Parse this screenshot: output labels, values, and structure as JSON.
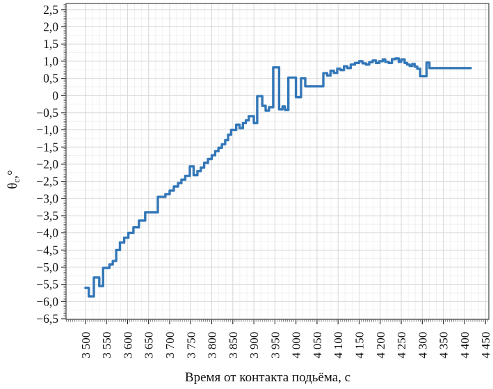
{
  "figure": {
    "xlabel": "Время от контакта подьёма, с",
    "ylabel_theta": "θ",
    "ylabel_sub": "с",
    "ylabel_rest": ",°"
  },
  "chart_data": {
    "type": "line",
    "line_style": "step",
    "title": "",
    "xlabel": "Время от контакта подьёма, с",
    "ylabel": "θс,°",
    "legend_position": "none",
    "grid": true,
    "xlim": [
      3454,
      4458
    ],
    "ylim": [
      -6.52,
      2.68
    ],
    "x_ticks": [
      3500,
      3550,
      3600,
      3650,
      3700,
      3750,
      3800,
      3850,
      3900,
      3950,
      4000,
      4050,
      4100,
      4150,
      4200,
      4250,
      4300,
      4350,
      4400,
      4450
    ],
    "x_tick_labels": [
      "3 500",
      "3 550",
      "3 600",
      "3 650",
      "3 700",
      "3 750",
      "3 800",
      "3 850",
      "3 900",
      "3 950",
      "4 000",
      "4 050",
      "4 100",
      "4 150",
      "4 200",
      "4 250",
      "4 300",
      "4 350",
      "4 400",
      "4 450"
    ],
    "y_ticks": [
      2.5,
      2.0,
      1.5,
      1.0,
      0.5,
      0,
      -0.5,
      -1.0,
      -1.5,
      -2.0,
      -2.5,
      -3.0,
      -3.5,
      -4.0,
      -4.5,
      -5.0,
      -5.5,
      -6.0,
      -6.5
    ],
    "y_tick_labels": [
      "2,5",
      "2,0",
      "1,5",
      "1,0",
      "0,5",
      "0",
      "−0,5",
      "−1,0",
      "−1,5",
      "−2,0",
      "−2,5",
      "−3,0",
      "−3,5",
      "−4,0",
      "−4,5",
      "−5,0",
      "−5,5",
      "−6,0",
      "−6,5"
    ],
    "x_minor_step": 5,
    "y_minor_step": 0.05,
    "line_color": "#3377b8",
    "grid_color": "#d9d9d9",
    "minor_grid_color": "#f0f0f0",
    "axis_color": "#444444",
    "x_end": 4415,
    "series": [
      {
        "name": "θc",
        "points": [
          [
            3500,
            -5.6
          ],
          [
            3508,
            -5.85
          ],
          [
            3520,
            -5.3
          ],
          [
            3533,
            -5.55
          ],
          [
            3542,
            -5.02
          ],
          [
            3557,
            -4.92
          ],
          [
            3565,
            -4.82
          ],
          [
            3573,
            -4.5
          ],
          [
            3582,
            -4.28
          ],
          [
            3592,
            -4.14
          ],
          [
            3602,
            -4.0
          ],
          [
            3614,
            -3.84
          ],
          [
            3627,
            -3.64
          ],
          [
            3642,
            -3.4
          ],
          [
            3672,
            -2.95
          ],
          [
            3690,
            -2.87
          ],
          [
            3700,
            -2.77
          ],
          [
            3710,
            -2.65
          ],
          [
            3720,
            -2.55
          ],
          [
            3728,
            -2.45
          ],
          [
            3737,
            -2.34
          ],
          [
            3748,
            -2.06
          ],
          [
            3757,
            -2.32
          ],
          [
            3766,
            -2.2
          ],
          [
            3774,
            -2.1
          ],
          [
            3782,
            -1.96
          ],
          [
            3791,
            -1.85
          ],
          [
            3800,
            -1.74
          ],
          [
            3808,
            -1.62
          ],
          [
            3816,
            -1.52
          ],
          [
            3824,
            -1.42
          ],
          [
            3832,
            -1.3
          ],
          [
            3839,
            -1.14
          ],
          [
            3846,
            -1.0
          ],
          [
            3858,
            -0.85
          ],
          [
            3866,
            -0.95
          ],
          [
            3874,
            -0.8
          ],
          [
            3881,
            -0.72
          ],
          [
            3888,
            -0.6
          ],
          [
            3900,
            -0.8
          ],
          [
            3908,
            -0.02
          ],
          [
            3920,
            -0.3
          ],
          [
            3928,
            -0.44
          ],
          [
            3936,
            -0.34
          ],
          [
            3946,
            0.82
          ],
          [
            3960,
            -0.4
          ],
          [
            3968,
            -0.32
          ],
          [
            3974,
            -0.42
          ],
          [
            3982,
            0.52
          ],
          [
            4000,
            -0.05
          ],
          [
            4012,
            0.5
          ],
          [
            4022,
            0.27
          ],
          [
            4065,
            0.65
          ],
          [
            4074,
            0.58
          ],
          [
            4082,
            0.72
          ],
          [
            4090,
            0.66
          ],
          [
            4098,
            0.78
          ],
          [
            4106,
            0.74
          ],
          [
            4114,
            0.85
          ],
          [
            4122,
            0.8
          ],
          [
            4130,
            0.9
          ],
          [
            4140,
            0.95
          ],
          [
            4150,
            1.0
          ],
          [
            4158,
            0.94
          ],
          [
            4166,
            0.9
          ],
          [
            4174,
            0.97
          ],
          [
            4182,
            1.02
          ],
          [
            4190,
            0.95
          ],
          [
            4198,
            1.0
          ],
          [
            4206,
            1.05
          ],
          [
            4212,
            0.98
          ],
          [
            4220,
            0.95
          ],
          [
            4228,
            1.06
          ],
          [
            4236,
            1.08
          ],
          [
            4244,
            0.98
          ],
          [
            4250,
            1.05
          ],
          [
            4258,
            0.95
          ],
          [
            4264,
            0.9
          ],
          [
            4270,
            0.86
          ],
          [
            4276,
            0.92
          ],
          [
            4282,
            0.84
          ],
          [
            4288,
            0.78
          ],
          [
            4295,
            0.56
          ],
          [
            4310,
            0.96
          ],
          [
            4317,
            0.8
          ],
          [
            4415,
            0.8
          ]
        ]
      }
    ]
  }
}
